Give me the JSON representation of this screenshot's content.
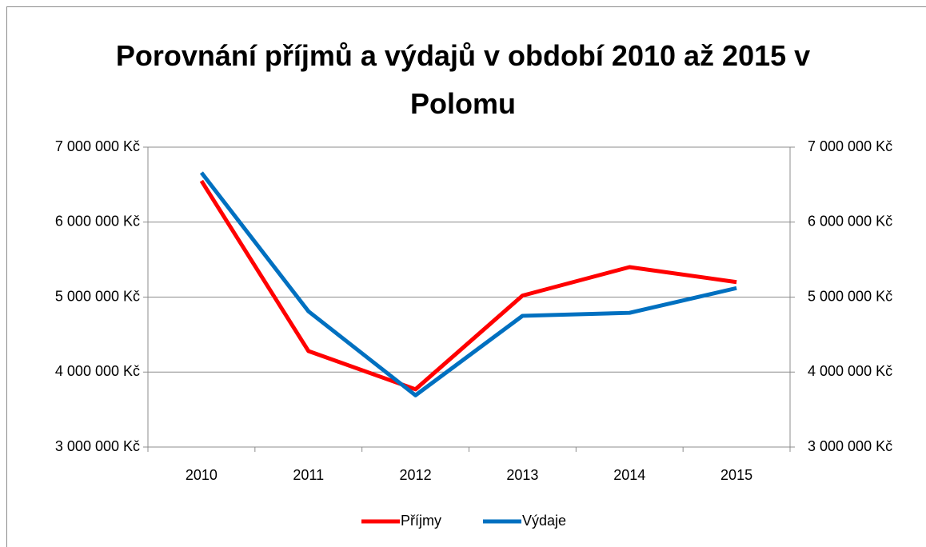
{
  "chart_data": {
    "type": "line",
    "title": "Porovnání příjmů a výdajů v období 2010 až 2015 v Polomu",
    "categories": [
      "2010",
      "2011",
      "2012",
      "2013",
      "2014",
      "2015"
    ],
    "series": [
      {
        "name": "Příjmy",
        "color": "#ff0000",
        "values": [
          6550000,
          4280000,
          3770000,
          5020000,
          5400000,
          5200000
        ]
      },
      {
        "name": "Výdaje",
        "color": "#0070c0",
        "values": [
          6660000,
          4810000,
          3690000,
          4750000,
          4790000,
          5120000
        ]
      }
    ],
    "ylim": [
      3000000,
      7000000
    ],
    "yticks": [
      {
        "value": 3000000,
        "label": "3 000 000 Kč"
      },
      {
        "value": 4000000,
        "label": "4 000 000 Kč"
      },
      {
        "value": 5000000,
        "label": "5 000 000 Kč"
      },
      {
        "value": 6000000,
        "label": "6 000 000 Kč"
      },
      {
        "value": 7000000,
        "label": "7 000 000 Kč"
      }
    ],
    "y2lim": [
      3000000,
      7000000
    ],
    "y2ticks": [
      {
        "value": 3000000,
        "label": "3 000 000 Kč"
      },
      {
        "value": 4000000,
        "label": "4 000 000 Kč"
      },
      {
        "value": 5000000,
        "label": "5 000 000 Kč"
      },
      {
        "value": 6000000,
        "label": "6 000 000 Kč"
      },
      {
        "value": 7000000,
        "label": "7 000 000 Kč"
      }
    ],
    "grid": true,
    "legend": "bottom"
  }
}
